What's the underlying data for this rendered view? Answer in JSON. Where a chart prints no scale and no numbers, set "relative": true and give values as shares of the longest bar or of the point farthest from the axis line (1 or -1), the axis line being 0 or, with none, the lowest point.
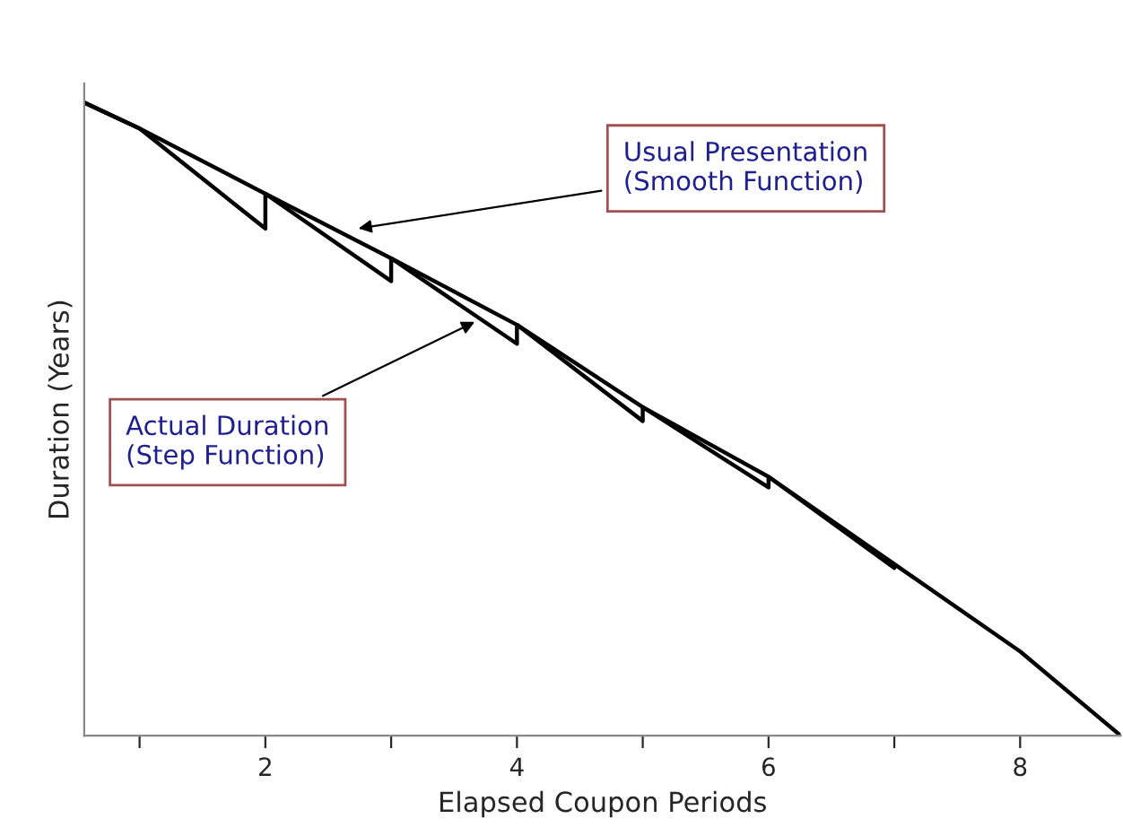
{
  "chart_data": {
    "type": "line",
    "relative": true,
    "xlabel": "Elapsed Coupon Periods",
    "ylabel": "Duration (Years)",
    "xlim": [
      0.56,
      8.8
    ],
    "xticks": [
      {
        "value": 1,
        "label": null
      },
      2,
      {
        "value": 3,
        "label": null
      },
      4,
      {
        "value": 5,
        "label": null
      },
      6,
      {
        "value": 7,
        "label": null
      },
      8
    ],
    "series": [
      {
        "color": "#000000",
        "x": [
          0.56,
          1,
          2,
          3,
          4,
          5,
          6,
          7,
          8,
          8.8
        ],
        "values": [
          1.0,
          0.959,
          0.856,
          0.754,
          0.649,
          0.519,
          0.409,
          0.271,
          0.133,
          0.0
        ]
      },
      {
        "color": "#000000",
        "x": [
          0.56,
          1,
          2,
          2,
          3,
          3,
          4,
          4,
          5,
          5,
          6,
          6,
          7
        ],
        "values": [
          1.0,
          0.959,
          0.801,
          0.856,
          0.718,
          0.754,
          0.619,
          0.649,
          0.497,
          0.519,
          0.392,
          0.409,
          0.265
        ]
      }
    ],
    "annotations": [
      {
        "text": "Usual Presentation\n(Smooth Function)",
        "x": 2.7,
        "y": 0.8
      },
      {
        "text": "Actual Duration\n(Step Function)",
        "x": 3.7,
        "y": 0.657
      }
    ],
    "grid": false,
    "legend": false,
    "tick_labels": "x"
  }
}
